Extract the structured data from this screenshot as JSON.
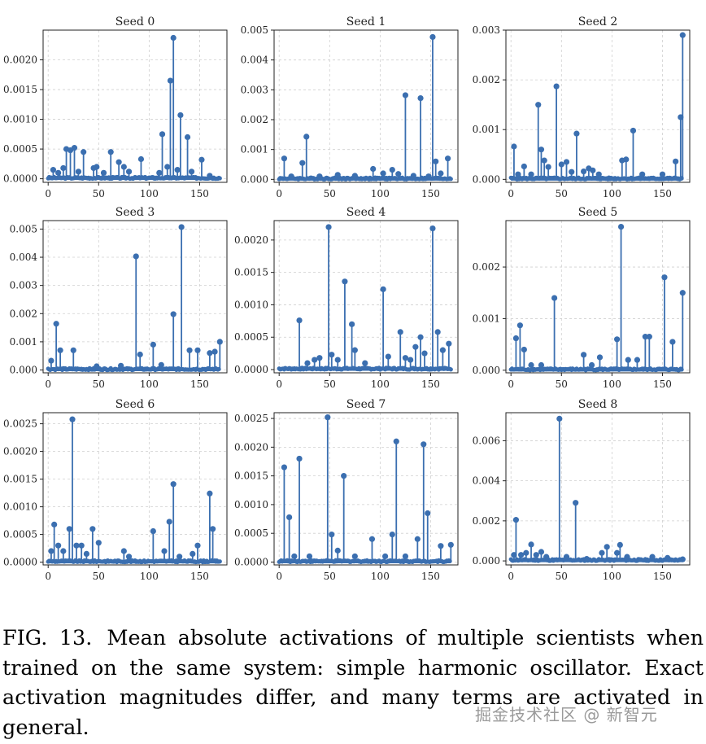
{
  "caption": {
    "label": "FIG. 13.",
    "text": "Mean absolute activations of multiple scientists when trained on the same system: simple harmonic oscillator. Exact activation magnitudes differ, and many terms are activated in general."
  },
  "watermark": "掘金技术社区 @ 新智元",
  "colors": {
    "stem": "#3b6fb0",
    "grid": "#cfcfcf",
    "frame": "#222222"
  },
  "chart_data": [
    {
      "type": "stem",
      "title": "Seed 0",
      "xlim": [
        -5,
        177
      ],
      "ylim": [
        -6e-05,
        0.0025
      ],
      "xticks": [
        0,
        50,
        100,
        150
      ],
      "yticks": [
        0.0,
        0.0005,
        0.001,
        0.0015,
        0.002
      ],
      "ytick_labels": [
        "0.0000",
        "0.0005",
        "0.0010",
        "0.0015",
        "0.0020"
      ],
      "peaks": [
        [
          5,
          0.00015
        ],
        [
          10,
          0.0001
        ],
        [
          15,
          0.00018
        ],
        [
          18,
          0.0005
        ],
        [
          22,
          0.00048
        ],
        [
          26,
          0.00052
        ],
        [
          30,
          0.00012
        ],
        [
          35,
          0.00045
        ],
        [
          45,
          0.00018
        ],
        [
          48,
          0.0002
        ],
        [
          55,
          0.0001
        ],
        [
          62,
          0.00045
        ],
        [
          70,
          0.00028
        ],
        [
          75,
          0.0002
        ],
        [
          80,
          0.00012
        ],
        [
          92,
          0.00033
        ],
        [
          110,
          0.0001
        ],
        [
          113,
          0.00075
        ],
        [
          118,
          0.0002
        ],
        [
          121,
          0.00165
        ],
        [
          124,
          0.00237
        ],
        [
          128,
          0.00015
        ],
        [
          131,
          0.00107
        ],
        [
          138,
          0.0007
        ],
        [
          142,
          0.00012
        ],
        [
          152,
          0.00032
        ],
        [
          160,
          5e-05
        ]
      ]
    },
    {
      "type": "stem",
      "title": "Seed 1",
      "xlim": [
        -5,
        177
      ],
      "ylim": [
        -0.0001,
        0.005
      ],
      "xticks": [
        0,
        50,
        100,
        150
      ],
      "yticks": [
        0.0,
        0.001,
        0.002,
        0.003,
        0.004,
        0.005
      ],
      "ytick_labels": [
        "0.000",
        "0.001",
        "0.002",
        "0.003",
        "0.004",
        "0.005"
      ],
      "peaks": [
        [
          5,
          0.0007
        ],
        [
          12,
          0.0001
        ],
        [
          23,
          0.00055
        ],
        [
          27,
          0.00143
        ],
        [
          40,
          0.0001
        ],
        [
          58,
          0.00015
        ],
        [
          75,
          0.00012
        ],
        [
          93,
          0.00035
        ],
        [
          103,
          0.0002
        ],
        [
          112,
          0.00032
        ],
        [
          118,
          0.00018
        ],
        [
          125,
          0.00282
        ],
        [
          133,
          0.00012
        ],
        [
          140,
          0.00272
        ],
        [
          148,
          0.0001
        ],
        [
          152,
          0.00477
        ],
        [
          155,
          0.0006
        ],
        [
          160,
          0.0002
        ],
        [
          167,
          0.0007
        ]
      ]
    },
    {
      "type": "stem",
      "title": "Seed 2",
      "xlim": [
        -5,
        177
      ],
      "ylim": [
        -6e-05,
        0.003
      ],
      "xticks": [
        0,
        50,
        100,
        150
      ],
      "yticks": [
        0.0,
        0.001,
        0.002,
        0.003
      ],
      "ytick_labels": [
        "0.000",
        "0.001",
        "0.002",
        "0.003"
      ],
      "peaks": [
        [
          3,
          0.00066
        ],
        [
          7,
          0.0001
        ],
        [
          13,
          0.00026
        ],
        [
          20,
          0.0001
        ],
        [
          27,
          0.0015
        ],
        [
          30,
          0.0006
        ],
        [
          33,
          0.00038
        ],
        [
          37,
          0.00025
        ],
        [
          45,
          0.00187
        ],
        [
          50,
          0.0003
        ],
        [
          55,
          0.00035
        ],
        [
          60,
          0.00015
        ],
        [
          65,
          0.00092
        ],
        [
          72,
          0.00016
        ],
        [
          77,
          0.00022
        ],
        [
          81,
          0.00018
        ],
        [
          87,
          0.0001
        ],
        [
          110,
          0.00038
        ],
        [
          114,
          0.0004
        ],
        [
          121,
          0.00098
        ],
        [
          130,
          0.0001
        ],
        [
          150,
          0.0001
        ],
        [
          163,
          0.00036
        ],
        [
          168,
          0.00125
        ],
        [
          170,
          0.0029
        ]
      ]
    },
    {
      "type": "stem",
      "title": "Seed 3",
      "xlim": [
        -5,
        177
      ],
      "ylim": [
        -0.0001,
        0.0053
      ],
      "xticks": [
        0,
        50,
        100,
        150
      ],
      "yticks": [
        0.0,
        0.001,
        0.002,
        0.003,
        0.004,
        0.005
      ],
      "ytick_labels": [
        "0.000",
        "0.001",
        "0.002",
        "0.003",
        "0.004",
        "0.005"
      ],
      "peaks": [
        [
          3,
          0.00033
        ],
        [
          8,
          0.00164
        ],
        [
          12,
          0.0007
        ],
        [
          25,
          0.0007
        ],
        [
          48,
          0.00013
        ],
        [
          72,
          0.00015
        ],
        [
          87,
          0.00403
        ],
        [
          91,
          0.00055
        ],
        [
          104,
          0.0009
        ],
        [
          112,
          0.00018
        ],
        [
          124,
          0.00198
        ],
        [
          132,
          0.00507
        ],
        [
          140,
          0.0007
        ],
        [
          148,
          0.0007
        ],
        [
          160,
          0.0006
        ],
        [
          165,
          0.00065
        ],
        [
          170,
          0.001
        ]
      ]
    },
    {
      "type": "stem",
      "title": "Seed 4",
      "xlim": [
        -5,
        177
      ],
      "ylim": [
        -5e-05,
        0.0023
      ],
      "xticks": [
        0,
        50,
        100,
        150
      ],
      "yticks": [
        0.0,
        0.0005,
        0.001,
        0.0015,
        0.002
      ],
      "ytick_labels": [
        "0.0000",
        "0.0005",
        "0.0010",
        "0.0015",
        "0.0020"
      ],
      "peaks": [
        [
          20,
          0.00076
        ],
        [
          28,
          0.0001
        ],
        [
          35,
          0.00015
        ],
        [
          40,
          0.00018
        ],
        [
          49,
          0.0022
        ],
        [
          52,
          0.00023
        ],
        [
          58,
          0.00015
        ],
        [
          65,
          0.00136
        ],
        [
          72,
          0.0007
        ],
        [
          75,
          0.0003
        ],
        [
          85,
          0.0001
        ],
        [
          103,
          0.00124
        ],
        [
          108,
          0.0002
        ],
        [
          120,
          0.00058
        ],
        [
          125,
          0.00018
        ],
        [
          130,
          0.00015
        ],
        [
          135,
          0.00035
        ],
        [
          140,
          0.0005
        ],
        [
          144,
          0.00025
        ],
        [
          152,
          0.00218
        ],
        [
          157,
          0.00058
        ],
        [
          162,
          0.0003
        ],
        [
          168,
          0.0004
        ]
      ]
    },
    {
      "type": "stem",
      "title": "Seed 5",
      "xlim": [
        -5,
        177
      ],
      "ylim": [
        -5e-05,
        0.0029
      ],
      "xticks": [
        0,
        50,
        100,
        150
      ],
      "yticks": [
        0.0,
        0.001,
        0.002
      ],
      "ytick_labels": [
        "0.000",
        "0.001",
        "0.002"
      ],
      "peaks": [
        [
          5,
          0.00062
        ],
        [
          9,
          0.00087
        ],
        [
          13,
          0.0004
        ],
        [
          20,
          0.0001
        ],
        [
          30,
          0.0001
        ],
        [
          43,
          0.0014
        ],
        [
          72,
          0.0003
        ],
        [
          80,
          0.0001
        ],
        [
          88,
          0.00025
        ],
        [
          105,
          0.0006
        ],
        [
          109,
          0.00278
        ],
        [
          116,
          0.0002
        ],
        [
          125,
          0.0002
        ],
        [
          133,
          0.00065
        ],
        [
          137,
          0.00065
        ],
        [
          152,
          0.0018
        ],
        [
          160,
          0.00055
        ],
        [
          170,
          0.0015
        ]
      ]
    },
    {
      "type": "stem",
      "title": "Seed 6",
      "xlim": [
        -5,
        177
      ],
      "ylim": [
        -5e-05,
        0.0027
      ],
      "xticks": [
        0,
        50,
        100,
        150
      ],
      "yticks": [
        0.0,
        0.0005,
        0.001,
        0.0015,
        0.002,
        0.0025
      ],
      "ytick_labels": [
        "0.0000",
        "0.0005",
        "0.0010",
        "0.0015",
        "0.0020",
        "0.0025"
      ],
      "peaks": [
        [
          3,
          0.0002
        ],
        [
          6,
          0.00068
        ],
        [
          10,
          0.0003
        ],
        [
          15,
          0.0002
        ],
        [
          21,
          0.0006
        ],
        [
          24,
          0.00258
        ],
        [
          28,
          0.0003
        ],
        [
          33,
          0.0003
        ],
        [
          38,
          0.00015
        ],
        [
          44,
          0.0006
        ],
        [
          50,
          0.00035
        ],
        [
          75,
          0.0002
        ],
        [
          80,
          0.0001
        ],
        [
          104,
          0.00056
        ],
        [
          115,
          0.0002
        ],
        [
          120,
          0.00073
        ],
        [
          124,
          0.00141
        ],
        [
          130,
          0.0001
        ],
        [
          143,
          0.00015
        ],
        [
          148,
          0.0003
        ],
        [
          160,
          0.00124
        ],
        [
          163,
          0.0006
        ]
      ]
    },
    {
      "type": "stem",
      "title": "Seed 7",
      "xlim": [
        -5,
        177
      ],
      "ylim": [
        -5e-05,
        0.0026
      ],
      "xticks": [
        0,
        50,
        100,
        150
      ],
      "yticks": [
        0.0,
        0.0005,
        0.001,
        0.0015,
        0.002,
        0.0025
      ],
      "ytick_labels": [
        "0.0000",
        "0.0005",
        "0.0010",
        "0.0015",
        "0.0020",
        "0.0025"
      ],
      "peaks": [
        [
          5,
          0.00165
        ],
        [
          10,
          0.00078
        ],
        [
          15,
          0.0001
        ],
        [
          20,
          0.0018
        ],
        [
          30,
          0.0001
        ],
        [
          48,
          0.00252
        ],
        [
          52,
          0.00048
        ],
        [
          58,
          0.0002
        ],
        [
          64,
          0.0015
        ],
        [
          75,
          0.0001
        ],
        [
          92,
          0.0004
        ],
        [
          105,
          0.0001
        ],
        [
          112,
          0.00048
        ],
        [
          116,
          0.0021
        ],
        [
          125,
          0.0001
        ],
        [
          137,
          0.0004
        ],
        [
          143,
          0.00205
        ],
        [
          147,
          0.00085
        ],
        [
          160,
          0.00028
        ],
        [
          170,
          0.0003
        ]
      ]
    },
    {
      "type": "stem",
      "title": "Seed 8",
      "xlim": [
        -5,
        177
      ],
      "ylim": [
        -0.0002,
        0.0074
      ],
      "xticks": [
        0,
        50,
        100,
        150
      ],
      "yticks": [
        0.0,
        0.002,
        0.004,
        0.006
      ],
      "ytick_labels": [
        "0.000",
        "0.002",
        "0.004",
        "0.006"
      ],
      "peaks": [
        [
          3,
          0.0003
        ],
        [
          5,
          0.00205
        ],
        [
          10,
          0.0003
        ],
        [
          15,
          0.0004
        ],
        [
          20,
          0.00082
        ],
        [
          25,
          0.0003
        ],
        [
          30,
          0.00045
        ],
        [
          35,
          0.0002
        ],
        [
          48,
          0.0071
        ],
        [
          55,
          0.0002
        ],
        [
          64,
          0.0029
        ],
        [
          75,
          0.0001
        ],
        [
          90,
          0.0004
        ],
        [
          95,
          0.0007
        ],
        [
          105,
          0.0004
        ],
        [
          108,
          0.0008
        ],
        [
          115,
          0.0002
        ],
        [
          140,
          0.0002
        ],
        [
          155,
          0.00015
        ],
        [
          170,
          8e-05
        ]
      ]
    }
  ]
}
